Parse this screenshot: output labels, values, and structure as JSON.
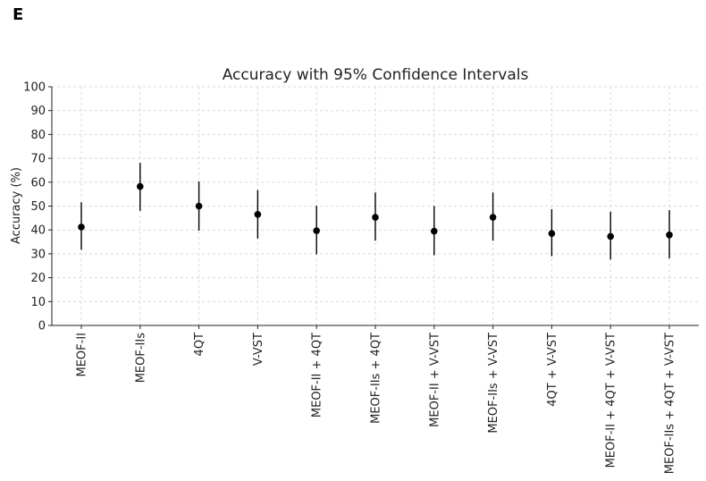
{
  "panel_label": "E",
  "chart_data": {
    "type": "scatter",
    "title": "Accuracy with 95% Confidence Intervals",
    "xlabel": "",
    "ylabel": "Accuracy (%)",
    "ylim": [
      0,
      100
    ],
    "yticks": [
      0,
      10,
      20,
      30,
      40,
      50,
      60,
      70,
      80,
      90,
      100
    ],
    "grid": true,
    "categories": [
      "MEOF-II",
      "MEOF-IIs",
      "4QT",
      "V-VST",
      "MEOF-II + 4QT",
      "MEOF-IIs + 4QT",
      "MEOF-II + V-VST",
      "MEOF-IIs + V-VST",
      "4QT + V-VST",
      "MEOF-II + 4QT + V-VST",
      "MEOF-IIs + 4QT + V-VST"
    ],
    "series": [
      {
        "values": [
          41.2,
          58.2,
          50.0,
          46.5,
          39.7,
          45.3,
          39.5,
          45.3,
          38.5,
          37.3,
          37.9
        ],
        "ci_low": [
          31.7,
          48.0,
          39.7,
          36.4,
          29.8,
          35.5,
          29.4,
          35.5,
          29.0,
          27.6,
          28.1
        ],
        "ci_high": [
          51.6,
          68.1,
          60.3,
          56.7,
          50.1,
          55.7,
          50.0,
          55.7,
          48.7,
          47.6,
          48.3
        ]
      }
    ]
  }
}
